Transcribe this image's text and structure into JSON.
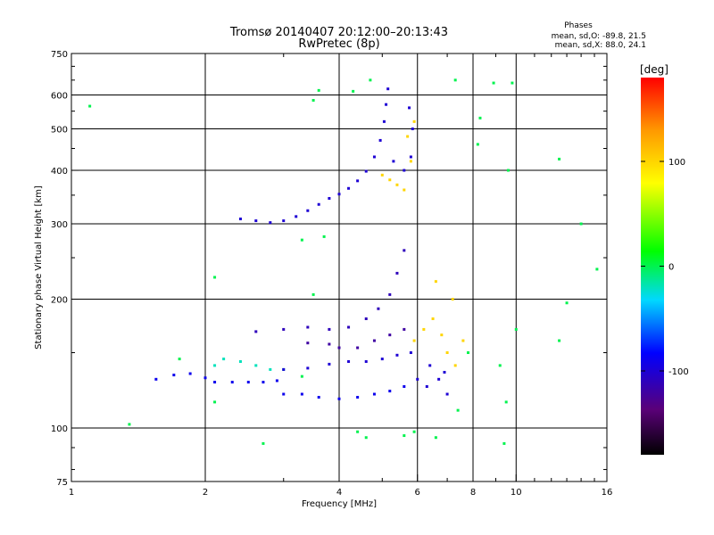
{
  "chart_data": {
    "type": "scatter",
    "title": "Tromsø 20140407 20:12:00–20:13:43",
    "subtitle": "RwPretec (8p)",
    "xlabel": "Frequency [MHz]",
    "ylabel": "Stationary phase Virtual Height [km]",
    "x_scale": "log",
    "y_scale": "log",
    "xlim": [
      1,
      16
    ],
    "ylim": [
      75,
      750
    ],
    "x_ticks": [
      1,
      2,
      4,
      6,
      8,
      10,
      16
    ],
    "x_tick_labels": [
      "1",
      "2",
      "4",
      "6",
      "8",
      "10",
      "16"
    ],
    "x_gridlines": [
      2,
      4,
      6,
      8,
      10
    ],
    "y_ticks": [
      75,
      100,
      200,
      300,
      400,
      500,
      600,
      750
    ],
    "y_tick_labels": [
      "75",
      "100",
      "200",
      "300",
      "400",
      "500",
      "600",
      "750"
    ],
    "y_gridlines": [
      100,
      200,
      300,
      400,
      500,
      600
    ],
    "grid": true,
    "phases_box": {
      "heading": "Phases",
      "line_o": "mean, sd,O: -89.8, 21.5",
      "line_x": "mean, sd,X:  88.0, 24.1"
    },
    "colorbar": {
      "unit": "[deg]",
      "min": -180,
      "max": 180,
      "ticks": [
        100,
        0,
        -100
      ],
      "tick_labels": [
        "100",
        "0",
        "-100"
      ],
      "colormap": "rainbow (black→purple→blue→cyan→green→yellow→orange→red)"
    },
    "series": [
      {
        "values": [
          [
            2.4,
            308
          ],
          [
            2.6,
            305
          ],
          [
            2.8,
            302
          ],
          [
            3.0,
            305
          ],
          [
            3.2,
            312
          ],
          [
            3.4,
            322
          ],
          [
            3.6,
            333
          ],
          [
            3.8,
            344
          ],
          [
            4.0,
            352
          ],
          [
            4.2,
            363
          ],
          [
            4.4,
            378
          ],
          [
            4.6,
            398
          ],
          [
            4.8,
            430
          ],
          [
            4.95,
            470
          ],
          [
            5.05,
            520
          ],
          [
            5.1,
            570
          ],
          [
            5.15,
            620
          ],
          [
            5.3,
            420
          ],
          [
            5.6,
            400
          ],
          [
            5.8,
            430
          ],
          [
            5.85,
            500
          ],
          [
            5.75,
            560
          ]
        ],
        "phase_deg": -100
      },
      {
        "values": [
          [
            5.0,
            390
          ],
          [
            5.2,
            380
          ],
          [
            5.4,
            370
          ],
          [
            5.6,
            360
          ],
          [
            5.8,
            420
          ],
          [
            5.7,
            480
          ],
          [
            5.9,
            520
          ]
        ],
        "phase_deg": 100
      },
      {
        "values": [
          [
            1.55,
            130
          ],
          [
            1.7,
            133
          ],
          [
            1.85,
            134
          ],
          [
            2.0,
            131
          ],
          [
            2.1,
            128
          ],
          [
            2.3,
            128
          ],
          [
            2.5,
            128
          ],
          [
            2.7,
            128
          ],
          [
            2.9,
            129
          ]
        ],
        "phase_deg": -90
      },
      {
        "values": [
          [
            2.1,
            140
          ],
          [
            2.2,
            145
          ],
          [
            2.4,
            143
          ],
          [
            2.6,
            140
          ],
          [
            2.8,
            137
          ],
          [
            3.0,
            137
          ]
        ],
        "phase_deg": -20
      },
      {
        "values": [
          [
            3.0,
            120
          ],
          [
            3.3,
            120
          ],
          [
            3.6,
            118
          ],
          [
            4.0,
            117
          ],
          [
            4.4,
            118
          ],
          [
            4.8,
            120
          ],
          [
            5.2,
            122
          ],
          [
            5.6,
            125
          ]
        ],
        "phase_deg": -90
      },
      {
        "values": [
          [
            3.0,
            137
          ],
          [
            3.4,
            138
          ],
          [
            3.8,
            141
          ],
          [
            4.2,
            143
          ],
          [
            4.6,
            143
          ],
          [
            5.0,
            145
          ],
          [
            5.4,
            148
          ],
          [
            5.8,
            150
          ]
        ],
        "phase_deg": -100
      },
      {
        "values": [
          [
            3.4,
            158
          ],
          [
            3.8,
            157
          ],
          [
            4.0,
            154
          ],
          [
            4.4,
            154
          ],
          [
            4.8,
            160
          ],
          [
            5.2,
            165
          ],
          [
            5.6,
            170
          ]
        ],
        "phase_deg": -120
      },
      {
        "values": [
          [
            2.6,
            168
          ],
          [
            3.0,
            170
          ],
          [
            3.4,
            172
          ],
          [
            3.8,
            170
          ],
          [
            4.2,
            172
          ],
          [
            4.6,
            180
          ],
          [
            4.9,
            190
          ],
          [
            5.2,
            205
          ],
          [
            5.4,
            230
          ],
          [
            5.6,
            260
          ]
        ],
        "phase_deg": -110
      },
      {
        "values": [
          [
            5.9,
            160
          ],
          [
            6.2,
            170
          ],
          [
            6.5,
            180
          ],
          [
            6.8,
            165
          ],
          [
            7.0,
            150
          ],
          [
            7.3,
            140
          ],
          [
            7.6,
            160
          ],
          [
            7.2,
            200
          ],
          [
            6.6,
            220
          ]
        ],
        "phase_deg": 100
      },
      {
        "values": [
          [
            6.0,
            130
          ],
          [
            6.3,
            125
          ],
          [
            6.7,
            130
          ],
          [
            7.0,
            120
          ],
          [
            6.4,
            140
          ],
          [
            6.9,
            135
          ]
        ],
        "phase_deg": -100
      },
      {
        "values": [
          [
            1.1,
            565
          ],
          [
            3.6,
            615
          ],
          [
            3.5,
            583
          ],
          [
            4.3,
            612
          ],
          [
            4.7,
            650
          ],
          [
            7.3,
            650
          ],
          [
            8.3,
            530
          ],
          [
            8.9,
            640
          ],
          [
            9.8,
            640
          ],
          [
            8.2,
            460
          ],
          [
            12.5,
            425
          ],
          [
            14.0,
            300
          ],
          [
            15.2,
            235
          ],
          [
            13.0,
            196
          ],
          [
            9.6,
            400
          ],
          [
            1.75,
            145
          ],
          [
            1.35,
            102
          ],
          [
            2.1,
            225
          ],
          [
            2.1,
            115
          ],
          [
            2.7,
            92
          ],
          [
            3.3,
            132
          ],
          [
            4.6,
            95
          ],
          [
            4.4,
            98
          ],
          [
            5.6,
            96
          ],
          [
            5.9,
            98
          ],
          [
            6.6,
            95
          ],
          [
            7.4,
            110
          ],
          [
            9.2,
            140
          ],
          [
            9.5,
            115
          ],
          [
            9.4,
            92
          ],
          [
            10.0,
            170
          ],
          [
            12.5,
            160
          ],
          [
            7.8,
            150
          ],
          [
            3.7,
            280
          ],
          [
            3.3,
            275
          ],
          [
            3.5,
            205
          ]
        ],
        "phase_deg": 0
      }
    ]
  }
}
